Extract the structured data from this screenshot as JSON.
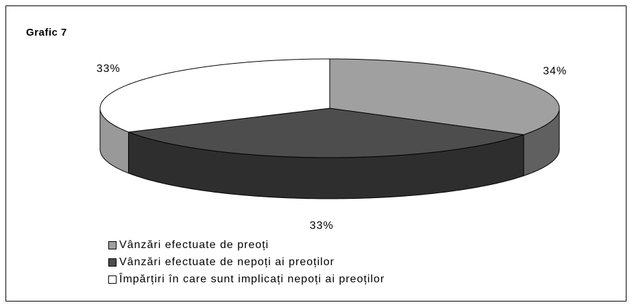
{
  "chart_data": {
    "type": "pie3d",
    "title": "Grafic 7",
    "categories": [
      "Vânzări efectuate de preoți",
      "Vânzări efectuate de nepoți ai preoților",
      "Împărțiri în care sunt implicați nepoți ai preoților"
    ],
    "values": [
      34,
      33,
      33
    ],
    "value_labels": [
      "34%",
      "33%",
      "33%"
    ],
    "colors": [
      "#a0a0a0",
      "#4d4d4d",
      "#ffffff"
    ]
  }
}
